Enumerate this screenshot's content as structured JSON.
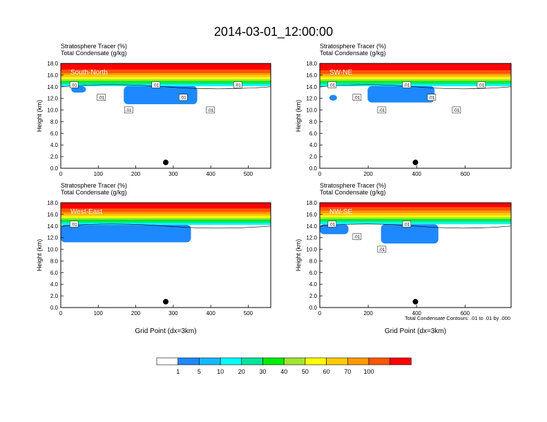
{
  "figure": {
    "title": "2014-03-01_12:00:00",
    "footnote": "Total Condensate Contours: .01 to .01 by .000"
  },
  "colors": {
    "palette": [
      "#ffffff",
      "#1e88ff",
      "#15b9ff",
      "#00ffff",
      "#00e59a",
      "#00ee00",
      "#a0e632",
      "#ffff00",
      "#ffcc00",
      "#ff9900",
      "#ff5500",
      "#ff0000"
    ]
  },
  "colorbar": {
    "labels": [
      "1",
      "5",
      "10",
      "20",
      "30",
      "40",
      "50",
      "60",
      "70",
      "100"
    ]
  },
  "chart_data": [
    {
      "type": "heatmap",
      "title_lines": [
        "Stratosphere Tracer   (%)",
        "Total Condensate   (g/kg)"
      ],
      "inner_label": "South-North",
      "xlabel": "",
      "ylabel": "Height (km)",
      "xlim": [
        0,
        560
      ],
      "ylim": [
        0,
        18
      ],
      "xticks": [
        0,
        100,
        200,
        300,
        400,
        500
      ],
      "yticks": [
        "0.0",
        "2.0",
        "4.0",
        "6.0",
        "8.0",
        "10.0",
        "12.0",
        "14.0",
        "16.0",
        "18.0"
      ],
      "marker": {
        "x": 280,
        "y": 1.0
      },
      "contour_labels": [
        ".01",
        ".01",
        ".01",
        ".01",
        ".01",
        ".01",
        ".01"
      ]
    },
    {
      "type": "heatmap",
      "title_lines": [
        "Stratosphere Tracer   (%)",
        "Total Condensate   (g/kg)"
      ],
      "inner_label": "SW-NE",
      "xlabel": "",
      "ylabel": "Height (km)",
      "xlim": [
        0,
        790
      ],
      "ylim": [
        0,
        18
      ],
      "xticks": [
        0,
        200,
        400,
        600
      ],
      "yticks": [
        "0.0",
        "2.0",
        "4.0",
        "6.0",
        "8.0",
        "10.0",
        "12.0",
        "14.0",
        "16.0",
        "18.0"
      ],
      "marker": {
        "x": 395,
        "y": 1.0
      },
      "contour_labels": [
        ".01",
        ".01",
        ".01",
        ".01",
        ".01",
        ".01",
        ".01"
      ]
    },
    {
      "type": "heatmap",
      "title_lines": [
        "Stratosphere Tracer   (%)",
        "Total Condensate   (g/kg)"
      ],
      "inner_label": "West-East",
      "xlabel": "Grid Point (dx=3km)",
      "ylabel": "Height (km)",
      "xlim": [
        0,
        560
      ],
      "ylim": [
        0,
        18
      ],
      "xticks": [
        0,
        100,
        200,
        300,
        400,
        500
      ],
      "yticks": [
        "0.0",
        "2.0",
        "4.0",
        "6.0",
        "8.0",
        "10.0",
        "12.0",
        "14.0",
        "16.0",
        "18.0"
      ],
      "marker": {
        "x": 280,
        "y": 1.0
      },
      "contour_labels": [
        ".01"
      ]
    },
    {
      "type": "heatmap",
      "title_lines": [
        "Stratosphere Tracer   (%)",
        "Total Condensate   (g/kg)"
      ],
      "inner_label": "NW-SE",
      "xlabel": "Grid Point (dx=3km)",
      "ylabel": "Height (km)",
      "xlim": [
        0,
        790
      ],
      "ylim": [
        0,
        18
      ],
      "xticks": [
        0,
        200,
        400,
        600
      ],
      "yticks": [
        "0.0",
        "2.0",
        "4.0",
        "6.0",
        "8.0",
        "10.0",
        "12.0",
        "14.0",
        "16.0",
        "18.0"
      ],
      "marker": {
        "x": 395,
        "y": 1.0
      },
      "contour_labels": [
        ".01",
        ".01",
        ".01",
        ".01"
      ]
    }
  ]
}
